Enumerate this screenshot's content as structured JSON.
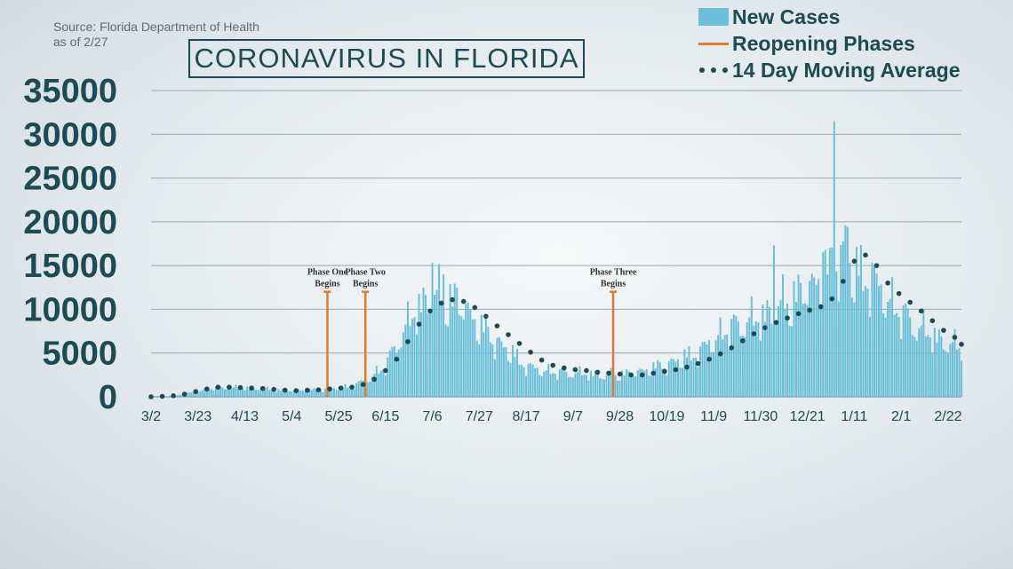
{
  "source": {
    "line1": "Source: Florida Department of Health",
    "line2": "as of 2/27"
  },
  "title": "CORONAVIRUS IN FLORIDA",
  "legend": [
    {
      "label": "New Cases",
      "kind": "bar",
      "color": "#6bbfd8"
    },
    {
      "label": "Reopening Phases",
      "kind": "line",
      "color": "#e07a2e"
    },
    {
      "label": "14 Day Moving Average",
      "kind": "dots",
      "color": "#1c4a55"
    }
  ],
  "chart_data": {
    "type": "bar",
    "title": "CORONAVIRUS IN FLORIDA",
    "xlabel": "",
    "ylabel": "",
    "ylim": [
      0,
      35000
    ],
    "yticks": [
      0,
      5000,
      10000,
      15000,
      20000,
      25000,
      30000,
      35000
    ],
    "grid": true,
    "legend_position": "top-right",
    "xtick_labels": [
      "3/2",
      "3/23",
      "4/13",
      "5/4",
      "5/25",
      "6/15",
      "7/6",
      "7/27",
      "8/17",
      "9/7",
      "9/28",
      "10/19",
      "11/9",
      "11/30",
      "12/21",
      "1/11",
      "2/1",
      "2/22"
    ],
    "x_start_label": "3/2",
    "n_days": 364,
    "series": [
      {
        "name": "New Cases",
        "type": "bar",
        "color": "#6bbfd8",
        "anchors": [
          [
            0,
            0
          ],
          [
            10,
            100
          ],
          [
            15,
            350
          ],
          [
            21,
            600
          ],
          [
            28,
            1000
          ],
          [
            35,
            1050
          ],
          [
            42,
            1000
          ],
          [
            49,
            900
          ],
          [
            56,
            750
          ],
          [
            63,
            700
          ],
          [
            70,
            750
          ],
          [
            77,
            850
          ],
          [
            84,
            1000
          ],
          [
            91,
            1300
          ],
          [
            98,
            2200
          ],
          [
            105,
            3500
          ],
          [
            112,
            7000
          ],
          [
            119,
            10000
          ],
          [
            126,
            11500
          ],
          [
            133,
            11000
          ],
          [
            140,
            10500
          ],
          [
            147,
            8000
          ],
          [
            154,
            6500
          ],
          [
            161,
            5000
          ],
          [
            168,
            3500
          ],
          [
            175,
            3000
          ],
          [
            182,
            2800
          ],
          [
            189,
            2700
          ],
          [
            196,
            2600
          ],
          [
            203,
            2400
          ],
          [
            210,
            2500
          ],
          [
            217,
            2800
          ],
          [
            224,
            3200
          ],
          [
            231,
            3700
          ],
          [
            238,
            4300
          ],
          [
            245,
            5000
          ],
          [
            252,
            6500
          ],
          [
            259,
            7800
          ],
          [
            266,
            8500
          ],
          [
            273,
            9000
          ],
          [
            280,
            10000
          ],
          [
            287,
            11000
          ],
          [
            294,
            12500
          ],
          [
            301,
            13500
          ],
          [
            308,
            16500
          ],
          [
            315,
            14000
          ],
          [
            322,
            13500
          ],
          [
            329,
            11500
          ],
          [
            336,
            9500
          ],
          [
            343,
            8000
          ],
          [
            350,
            7000
          ],
          [
            357,
            6000
          ],
          [
            363,
            5500
          ]
        ],
        "spikes": [
          [
            126,
            15300
          ],
          [
            131,
            14000
          ],
          [
            137,
            12500
          ],
          [
            279,
            17300
          ],
          [
            301,
            16500
          ],
          [
            304,
            17000
          ],
          [
            306,
            31500
          ],
          [
            311,
            19600
          ],
          [
            312,
            19400
          ],
          [
            323,
            15300
          ]
        ]
      },
      {
        "name": "14 Day Moving Average",
        "type": "dots",
        "color": "#1c4a55",
        "points": [
          [
            0,
            0
          ],
          [
            5,
            50
          ],
          [
            10,
            120
          ],
          [
            15,
            300
          ],
          [
            20,
            600
          ],
          [
            25,
            900
          ],
          [
            30,
            1100
          ],
          [
            35,
            1100
          ],
          [
            40,
            1050
          ],
          [
            45,
            1000
          ],
          [
            50,
            950
          ],
          [
            55,
            850
          ],
          [
            60,
            750
          ],
          [
            65,
            700
          ],
          [
            70,
            750
          ],
          [
            75,
            800
          ],
          [
            80,
            900
          ],
          [
            85,
            1000
          ],
          [
            90,
            1100
          ],
          [
            95,
            1400
          ],
          [
            100,
            2000
          ],
          [
            105,
            3000
          ],
          [
            110,
            4300
          ],
          [
            115,
            6300
          ],
          [
            120,
            8300
          ],
          [
            125,
            9800
          ],
          [
            130,
            10700
          ],
          [
            135,
            11100
          ],
          [
            140,
            10900
          ],
          [
            145,
            10200
          ],
          [
            150,
            9200
          ],
          [
            155,
            8100
          ],
          [
            160,
            7100
          ],
          [
            165,
            6100
          ],
          [
            170,
            5100
          ],
          [
            175,
            4200
          ],
          [
            180,
            3600
          ],
          [
            185,
            3300
          ],
          [
            190,
            3100
          ],
          [
            195,
            3000
          ],
          [
            200,
            2800
          ],
          [
            205,
            2700
          ],
          [
            210,
            2600
          ],
          [
            215,
            2500
          ],
          [
            220,
            2500
          ],
          [
            225,
            2700
          ],
          [
            230,
            2900
          ],
          [
            235,
            3100
          ],
          [
            240,
            3400
          ],
          [
            245,
            3800
          ],
          [
            250,
            4300
          ],
          [
            255,
            4900
          ],
          [
            260,
            5600
          ],
          [
            265,
            6400
          ],
          [
            270,
            7200
          ],
          [
            275,
            7900
          ],
          [
            280,
            8500
          ],
          [
            285,
            9000
          ],
          [
            290,
            9500
          ],
          [
            295,
            9900
          ],
          [
            300,
            10300
          ],
          [
            305,
            11200
          ],
          [
            310,
            13200
          ],
          [
            315,
            15500
          ],
          [
            320,
            16200
          ],
          [
            325,
            15000
          ],
          [
            330,
            13000
          ],
          [
            335,
            11800
          ],
          [
            340,
            10800
          ],
          [
            345,
            9800
          ],
          [
            350,
            8700
          ],
          [
            355,
            7600
          ],
          [
            360,
            6800
          ],
          [
            363,
            6000
          ]
        ]
      }
    ],
    "reopening_phases": [
      {
        "label_line1": "Phase One",
        "label_line2": "Begins",
        "day": 79,
        "value": 12000,
        "color": "#e07a2e"
      },
      {
        "label_line1": "Phase Two",
        "label_line2": "Begins",
        "day": 96,
        "value": 12000,
        "color": "#e07a2e"
      },
      {
        "label_line1": "Phase Three",
        "label_line2": "Begins",
        "day": 207,
        "value": 12000,
        "color": "#e07a2e"
      }
    ]
  }
}
